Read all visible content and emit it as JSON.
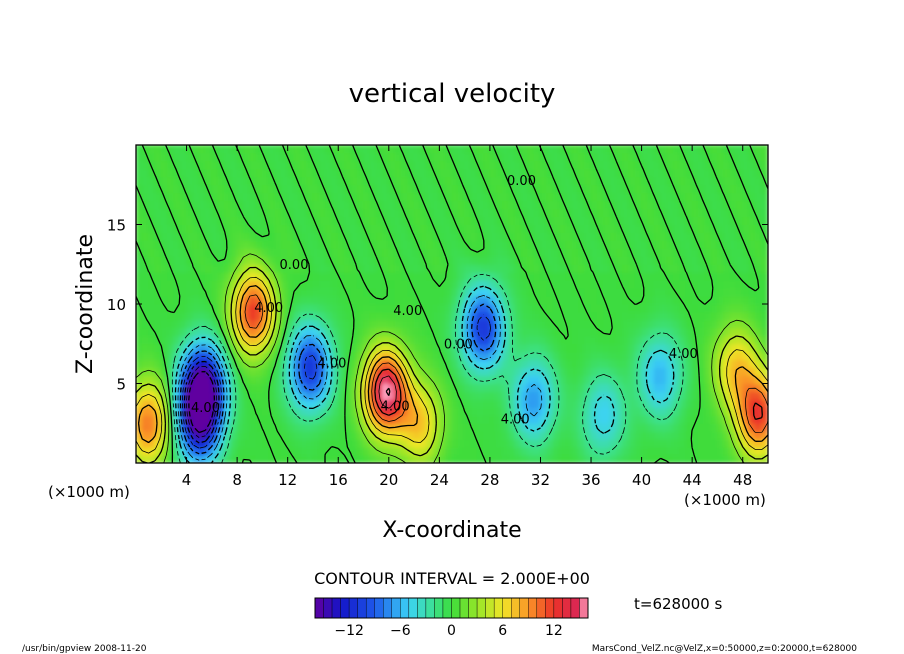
{
  "chart_data": {
    "type": "heatmap",
    "title": "vertical velocity",
    "xlabel": "X-coordinate",
    "ylabel": "Z-coordinate",
    "x_unit": "(×1000 m)",
    "y_unit": "(×1000 m)",
    "xlim": [
      0,
      50
    ],
    "ylim": [
      0,
      20
    ],
    "x_ticks": [
      4,
      8,
      12,
      16,
      20,
      24,
      28,
      32,
      36,
      40,
      44,
      48
    ],
    "y_ticks": [
      5,
      10,
      15
    ],
    "contour_interval_text": "CONTOUR INTERVAL = 2.000E+00",
    "time_text": "t=628000 s",
    "colorbar": {
      "range": [
        -16,
        16
      ],
      "ticks": [
        -12,
        -6,
        0,
        6,
        12
      ],
      "tick_labels": [
        "−12",
        "−6",
        "0",
        "6",
        "12"
      ]
    },
    "contour_labels": [
      {
        "text": "4.00",
        "x": 10.5,
        "z": 9.5
      },
      {
        "text": "4.00",
        "x": 21.5,
        "z": 9.3
      },
      {
        "text": "4.00",
        "x": 5.5,
        "z": 3.2
      },
      {
        "text": "4.00",
        "x": 15.5,
        "z": 6.0
      },
      {
        "text": "4.00",
        "x": 20.5,
        "z": 3.3
      },
      {
        "text": "4.00",
        "x": 30.0,
        "z": 2.5
      },
      {
        "text": "4.00",
        "x": 43.3,
        "z": 6.6
      },
      {
        "text": "0.00",
        "x": 12.5,
        "z": 12.2
      },
      {
        "text": "0.00",
        "x": 25.5,
        "z": 7.2
      },
      {
        "text": "0.00",
        "x": 30.5,
        "z": 17.5
      }
    ],
    "field_features": [
      {
        "x": 1.0,
        "z": 2.5,
        "w": 10
      },
      {
        "x": 5.3,
        "z": 4.8,
        "w": -16
      },
      {
        "x": 5.0,
        "z": 2.5,
        "w": -12
      },
      {
        "x": 9.3,
        "z": 9.5,
        "w": 12
      },
      {
        "x": 13.8,
        "z": 6.0,
        "w": -11
      },
      {
        "x": 19.8,
        "z": 4.5,
        "w": 16
      },
      {
        "x": 22.5,
        "z": 2.5,
        "w": 7
      },
      {
        "x": 27.5,
        "z": 8.5,
        "w": -11
      },
      {
        "x": 31.5,
        "z": 4.0,
        "w": -7
      },
      {
        "x": 37.0,
        "z": 3.0,
        "w": -5
      },
      {
        "x": 41.5,
        "z": 5.5,
        "w": -6
      },
      {
        "x": 49.3,
        "z": 3.0,
        "w": 12
      },
      {
        "x": 47.5,
        "z": 6.0,
        "w": 7
      }
    ]
  },
  "footer": {
    "left": "/usr/bin/gpview  2008-11-20",
    "right": "MarsCond_VelZ.nc@VelZ,x=0:50000,z=0:20000,t=628000"
  }
}
